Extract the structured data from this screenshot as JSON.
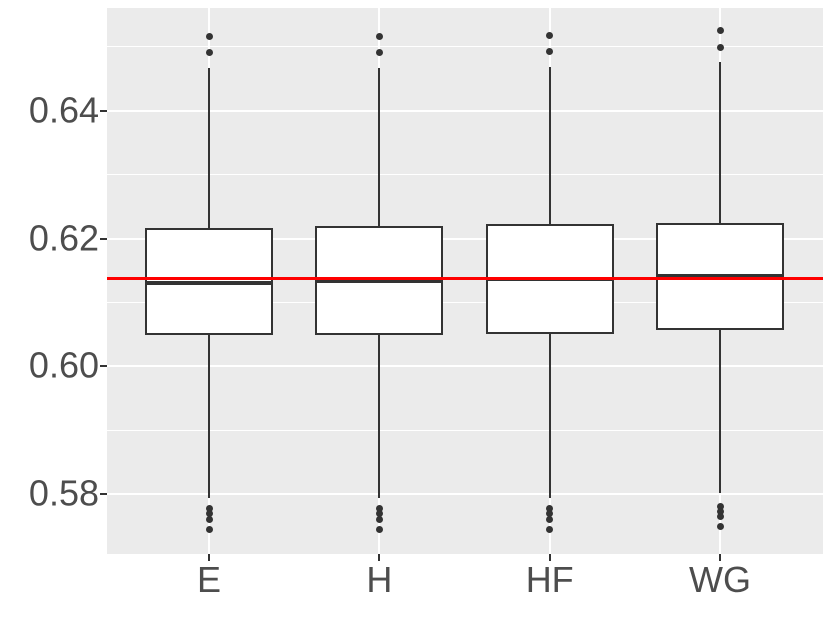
{
  "chart_data": {
    "type": "boxplot",
    "title": "",
    "xlabel": "",
    "ylabel": "",
    "legend": "none",
    "grid": "on",
    "categories": [
      "E",
      "H",
      "HF",
      "WG"
    ],
    "y_axis": {
      "tick_values": [
        0.58,
        0.6,
        0.62,
        0.64
      ],
      "tick_labels": [
        "0.58",
        "0.60",
        "0.62",
        "0.64"
      ],
      "minor_tick_values": [
        0.59,
        0.61,
        0.63,
        0.65
      ],
      "min": 0.5706,
      "max": 0.6561
    },
    "boxes": [
      {
        "category": "E",
        "q1": 0.6049,
        "median": 0.6131,
        "q3": 0.6217,
        "whisker_low": 0.5794,
        "whisker_high": 0.6467,
        "outliers_high": [
          0.6516,
          0.6491
        ],
        "outliers_low": [
          0.5777,
          0.5769,
          0.576,
          0.5744
        ]
      },
      {
        "category": "H",
        "q1": 0.6049,
        "median": 0.6133,
        "q3": 0.6219,
        "whisker_low": 0.5794,
        "whisker_high": 0.6467,
        "outliers_high": [
          0.6516,
          0.6491
        ],
        "outliers_low": [
          0.5777,
          0.5769,
          0.576,
          0.5744
        ]
      },
      {
        "category": "HF",
        "q1": 0.6051,
        "median": 0.6136,
        "q3": 0.6222,
        "whisker_low": 0.5794,
        "whisker_high": 0.6468,
        "outliers_high": [
          0.6518,
          0.6493
        ],
        "outliers_low": [
          0.5777,
          0.5769,
          0.576,
          0.5744
        ]
      },
      {
        "category": "WG",
        "q1": 0.6057,
        "median": 0.6142,
        "q3": 0.6225,
        "whisker_low": 0.5802,
        "whisker_high": 0.6477,
        "outliers_high": [
          0.6525,
          0.6499
        ],
        "outliers_low": [
          0.5781,
          0.5773,
          0.5765,
          0.5749
        ]
      }
    ],
    "reference_line": {
      "value": 0.6137,
      "color": "#FF0000"
    },
    "style": {
      "panel_bg": "#EBEBEB",
      "grid_color": "#FFFFFF",
      "box_fill": "#FFFFFF",
      "box_border": "#333333",
      "outlier_color": "#333333",
      "axis_text_color": "#4D4D4D",
      "tick_mark_color": "#333333"
    }
  }
}
